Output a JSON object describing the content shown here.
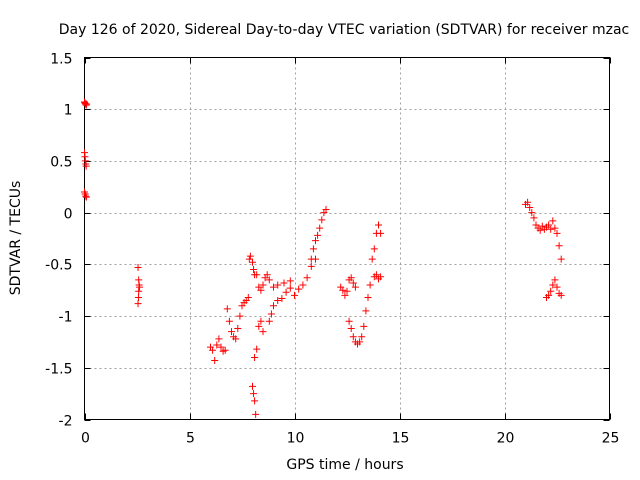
{
  "chart_data": {
    "type": "scatter",
    "title": "Day 126 of 2020, Sidereal Day-to-day VTEC variation (SDTVAR) for receiver mzac",
    "xlabel": "GPS time / hours",
    "ylabel": "SDTVAR / TECUs",
    "xlim": [
      0,
      25
    ],
    "ylim": [
      -2,
      1.5
    ],
    "x_ticks": [
      0,
      5,
      10,
      15,
      20,
      25
    ],
    "x_tick_labels": [
      "0",
      "5",
      "10",
      "15",
      "20",
      "25"
    ],
    "y_ticks": [
      1.5,
      1,
      0.5,
      0,
      -0.5,
      -1,
      -1.5,
      -2
    ],
    "y_tick_labels": [
      "1.5",
      "1",
      "0.5",
      "0",
      "-0.5",
      "-1",
      "-1.5",
      "-2"
    ],
    "grid": true,
    "marker": "plus",
    "color": "#ff0000",
    "series": [
      {
        "name": "SDTVAR",
        "points": [
          [
            0.0,
            1.07
          ],
          [
            0.02,
            1.06
          ],
          [
            0.05,
            1.05
          ],
          [
            0.08,
            1.04
          ],
          [
            0.1,
            1.05
          ],
          [
            0.0,
            0.58
          ],
          [
            0.02,
            0.54
          ],
          [
            0.04,
            0.5
          ],
          [
            0.06,
            0.47
          ],
          [
            0.08,
            0.45
          ],
          [
            0.0,
            0.2
          ],
          [
            0.03,
            0.18
          ],
          [
            0.06,
            0.16
          ],
          [
            0.09,
            0.15
          ],
          [
            2.55,
            -0.53
          ],
          [
            2.58,
            -0.65
          ],
          [
            2.6,
            -0.7
          ],
          [
            2.62,
            -0.72
          ],
          [
            2.58,
            -0.76
          ],
          [
            2.57,
            -0.82
          ],
          [
            2.55,
            -0.88
          ],
          [
            6.0,
            -1.3
          ],
          [
            6.1,
            -1.33
          ],
          [
            6.2,
            -1.43
          ],
          [
            6.3,
            -1.28
          ],
          [
            6.4,
            -1.22
          ],
          [
            6.5,
            -1.3
          ],
          [
            6.6,
            -1.34
          ],
          [
            6.7,
            -1.33
          ],
          [
            6.8,
            -0.93
          ],
          [
            6.9,
            -1.05
          ],
          [
            7.0,
            -1.15
          ],
          [
            7.1,
            -1.2
          ],
          [
            7.2,
            -1.22
          ],
          [
            7.3,
            -1.12
          ],
          [
            7.4,
            -1.0
          ],
          [
            7.5,
            -0.9
          ],
          [
            7.6,
            -0.87
          ],
          [
            7.7,
            -0.85
          ],
          [
            7.8,
            -0.82
          ],
          [
            7.85,
            -0.45
          ],
          [
            7.9,
            -0.42
          ],
          [
            8.0,
            -0.48
          ],
          [
            8.05,
            -0.55
          ],
          [
            8.1,
            -0.6
          ],
          [
            8.0,
            -1.68
          ],
          [
            8.05,
            -1.75
          ],
          [
            8.1,
            -1.82
          ],
          [
            8.15,
            -1.95
          ],
          [
            8.1,
            -1.4
          ],
          [
            8.2,
            -1.32
          ],
          [
            8.3,
            -1.1
          ],
          [
            8.4,
            -1.05
          ],
          [
            8.5,
            -1.15
          ],
          [
            8.2,
            -0.6
          ],
          [
            8.3,
            -0.72
          ],
          [
            8.4,
            -0.75
          ],
          [
            8.5,
            -0.7
          ],
          [
            8.6,
            -0.63
          ],
          [
            8.7,
            -0.6
          ],
          [
            8.8,
            -0.65
          ],
          [
            8.8,
            -1.05
          ],
          [
            8.9,
            -0.98
          ],
          [
            9.0,
            -0.9
          ],
          [
            9.2,
            -0.85
          ],
          [
            9.4,
            -0.83
          ],
          [
            9.6,
            -0.77
          ],
          [
            9.8,
            -0.73
          ],
          [
            9.0,
            -0.72
          ],
          [
            9.2,
            -0.7
          ],
          [
            9.5,
            -0.68
          ],
          [
            9.8,
            -0.66
          ],
          [
            10.0,
            -0.8
          ],
          [
            10.2,
            -0.74
          ],
          [
            10.4,
            -0.7
          ],
          [
            10.6,
            -0.63
          ],
          [
            10.8,
            -0.52
          ],
          [
            11.0,
            -0.45
          ],
          [
            10.8,
            -0.45
          ],
          [
            10.9,
            -0.35
          ],
          [
            11.0,
            -0.27
          ],
          [
            11.1,
            -0.22
          ],
          [
            11.2,
            -0.15
          ],
          [
            11.3,
            -0.07
          ],
          [
            11.4,
            0.0
          ],
          [
            11.5,
            0.03
          ],
          [
            12.2,
            -0.72
          ],
          [
            12.3,
            -0.75
          ],
          [
            12.4,
            -0.8
          ],
          [
            12.5,
            -0.76
          ],
          [
            12.6,
            -0.65
          ],
          [
            12.7,
            -0.63
          ],
          [
            12.8,
            -0.68
          ],
          [
            12.9,
            -0.72
          ],
          [
            12.6,
            -1.05
          ],
          [
            12.7,
            -1.12
          ],
          [
            12.8,
            -1.2
          ],
          [
            12.9,
            -1.25
          ],
          [
            13.0,
            -1.27
          ],
          [
            13.1,
            -1.25
          ],
          [
            13.2,
            -1.2
          ],
          [
            13.3,
            -1.1
          ],
          [
            13.4,
            -0.95
          ],
          [
            13.5,
            -0.82
          ],
          [
            13.6,
            -0.7
          ],
          [
            13.7,
            -0.45
          ],
          [
            13.8,
            -0.35
          ],
          [
            13.9,
            -0.2
          ],
          [
            14.0,
            -0.12
          ],
          [
            14.1,
            -0.2
          ],
          [
            13.8,
            -0.62
          ],
          [
            13.9,
            -0.6
          ],
          [
            14.0,
            -0.64
          ],
          [
            14.1,
            -0.62
          ],
          [
            21.0,
            0.08
          ],
          [
            21.1,
            0.1
          ],
          [
            21.2,
            0.05
          ],
          [
            21.3,
            0.0
          ],
          [
            21.4,
            -0.05
          ],
          [
            21.5,
            -0.12
          ],
          [
            21.6,
            -0.15
          ],
          [
            21.7,
            -0.17
          ],
          [
            21.8,
            -0.13
          ],
          [
            21.9,
            -0.16
          ],
          [
            22.0,
            -0.14
          ],
          [
            22.1,
            -0.12
          ],
          [
            22.2,
            -0.16
          ],
          [
            22.3,
            -0.08
          ],
          [
            22.4,
            -0.15
          ],
          [
            22.5,
            -0.2
          ],
          [
            22.6,
            -0.32
          ],
          [
            22.7,
            -0.45
          ],
          [
            22.0,
            -0.82
          ],
          [
            22.1,
            -0.8
          ],
          [
            22.2,
            -0.76
          ],
          [
            22.3,
            -0.7
          ],
          [
            22.4,
            -0.65
          ],
          [
            22.5,
            -0.72
          ],
          [
            22.6,
            -0.78
          ],
          [
            22.7,
            -0.8
          ]
        ]
      }
    ]
  }
}
